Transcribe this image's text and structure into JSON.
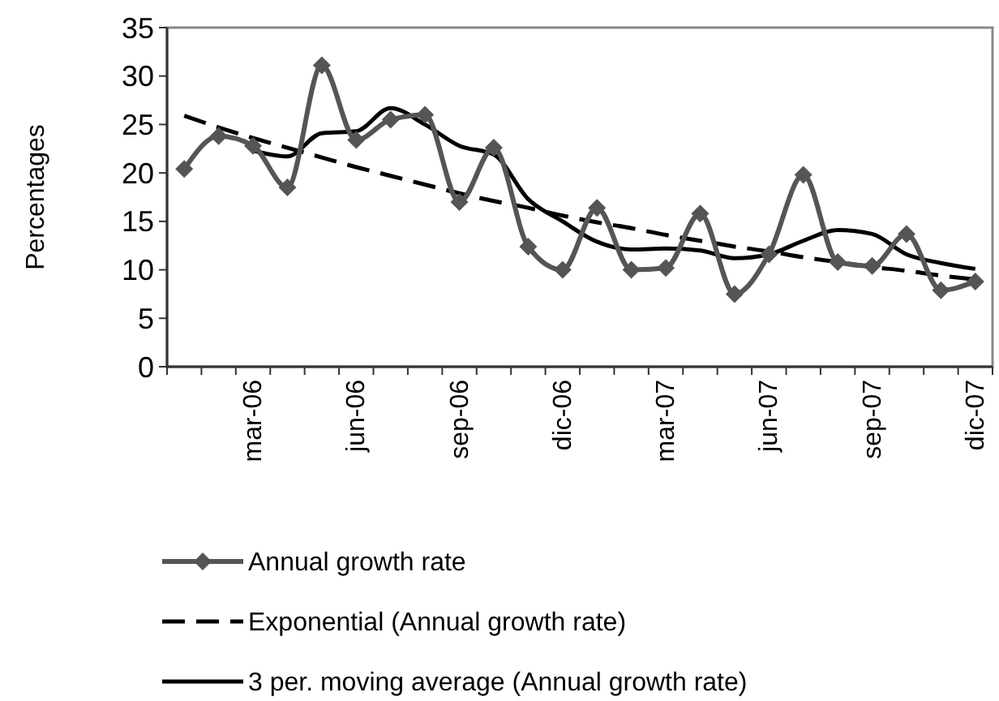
{
  "chart_data": {
    "type": "line",
    "ylabel": "Percentages",
    "categories": [
      null,
      null,
      "mar-06",
      null,
      null,
      "jun-06",
      null,
      null,
      "sep-06",
      null,
      null,
      "dic-06",
      null,
      null,
      "mar-07",
      null,
      null,
      "jun-07",
      null,
      null,
      "sep-07",
      null,
      null,
      "dic-07"
    ],
    "series": [
      {
        "name": "Annual growth rate",
        "color": "#555555",
        "marker": "diamond",
        "line_style": "solid",
        "values": [
          20.4,
          23.8,
          22.8,
          18.5,
          31.1,
          23.4,
          25.5,
          26.0,
          17.0,
          22.6,
          12.4,
          10.0,
          16.4,
          10.0,
          10.2,
          15.8,
          7.5,
          11.6,
          19.8,
          10.8,
          10.4,
          13.7,
          7.9,
          8.8
        ]
      },
      {
        "name": "Exponential (Annual growth rate)",
        "color": "#000000",
        "marker": "none",
        "line_style": "dashed",
        "values": [
          25.9,
          24.7,
          23.6,
          22.6,
          21.6,
          20.6,
          19.7,
          18.8,
          17.9,
          17.1,
          16.4,
          15.6,
          14.9,
          14.3,
          13.6,
          13.0,
          12.4,
          11.9,
          11.3,
          10.8,
          10.3,
          9.9,
          9.4,
          9.0
        ]
      },
      {
        "name": "3 per. moving average (Annual growth rate)",
        "color": "#000000",
        "marker": "none",
        "line_style": "solid",
        "values": [
          null,
          null,
          22.3,
          21.7,
          24.1,
          24.3,
          26.7,
          25.0,
          22.8,
          21.9,
          17.3,
          15.0,
          12.9,
          12.1,
          12.2,
          12.0,
          11.2,
          11.6,
          13.0,
          14.1,
          13.7,
          11.6,
          10.7,
          10.1
        ]
      }
    ],
    "ylim": [
      0,
      35
    ],
    "yticks": [
      0,
      5,
      10,
      15,
      20,
      25,
      30,
      35
    ],
    "grid": false,
    "legend": "bottom"
  }
}
